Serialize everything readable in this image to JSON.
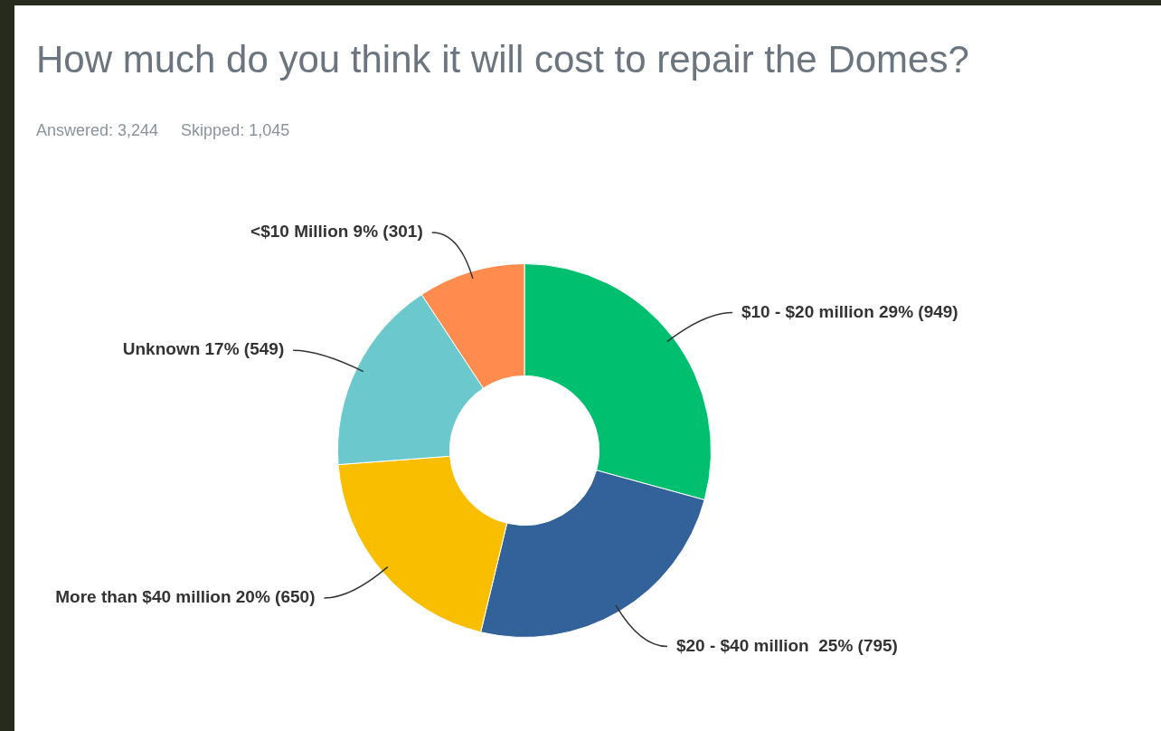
{
  "chart_data": {
    "type": "donut",
    "title": "How much do you think it will cost to repair the Domes?",
    "subtitle": "Answered: 3,244     Skipped: 1,045",
    "categories": [
      "$10 - $20 million",
      "$20 - $40 million ",
      "More than $40 million",
      "Unknown",
      "<$10 Million"
    ],
    "values": [
      949,
      795,
      650,
      549,
      301
    ],
    "value_labels": [
      "29% (949)",
      "25% (795)",
      "20% (650)",
      "17% (549)",
      "9% (301)"
    ],
    "colors": [
      "#00bf6f",
      "#336199",
      "#f9be00",
      "#6bc8cd",
      "#ff8b4f"
    ],
    "legend": false
  }
}
